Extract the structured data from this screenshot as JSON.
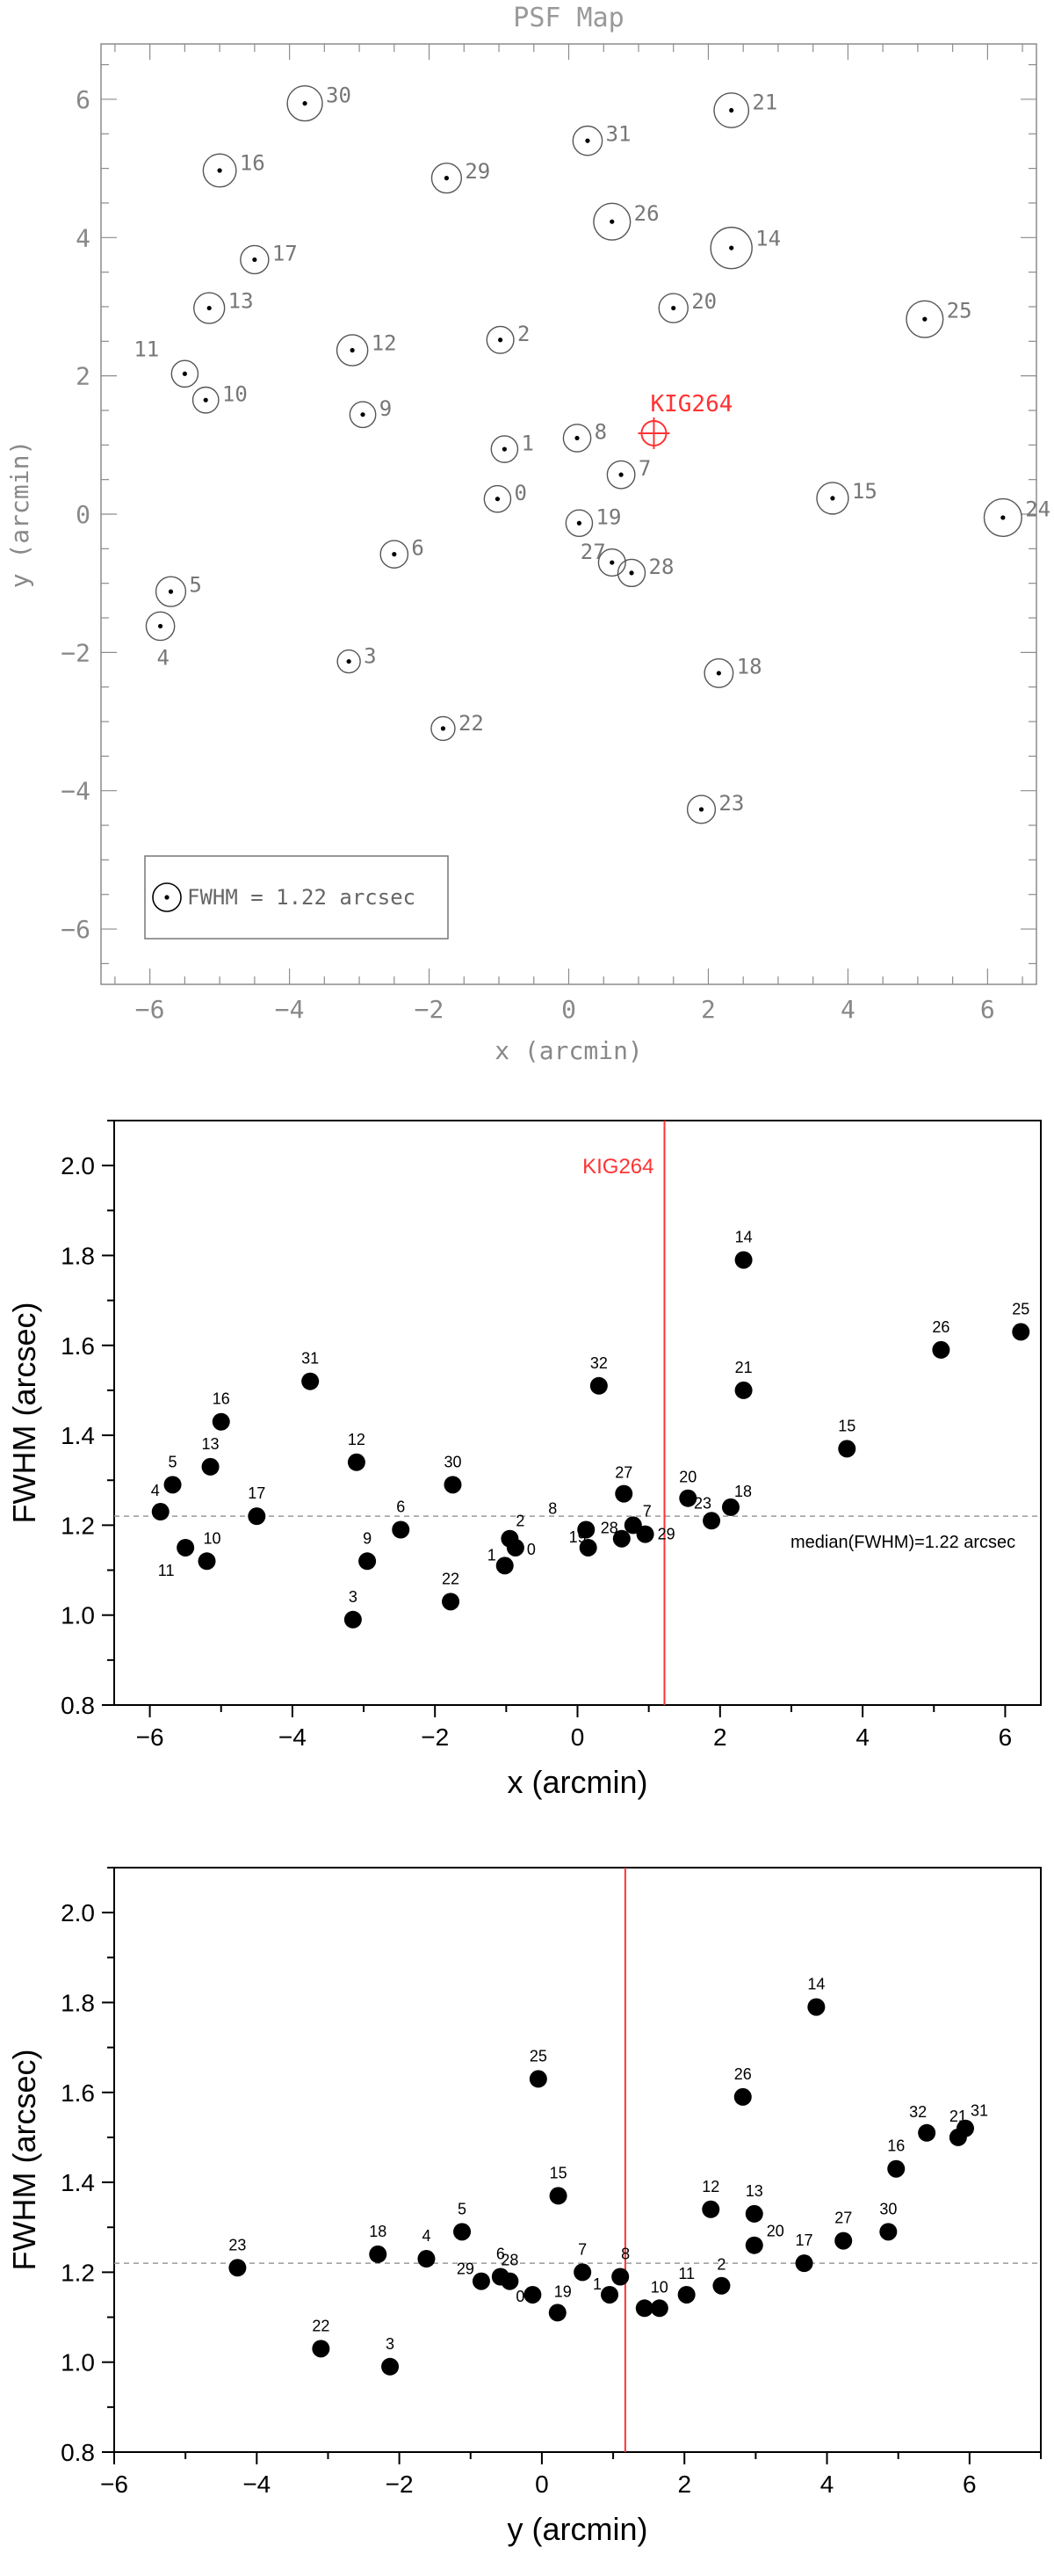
{
  "chart_data": [
    {
      "type": "scatter",
      "title": "PSF Map",
      "xlabel": "x (arcmin)",
      "ylabel": "y (arcmin)",
      "xlim": [
        -6.7,
        6.7
      ],
      "ylim": [
        -6.8,
        6.8
      ],
      "x_ticks": [
        -6,
        -4,
        -2,
        0,
        2,
        4,
        6
      ],
      "y_ticks": [
        -6,
        -4,
        -2,
        0,
        2,
        4,
        6
      ],
      "target": {
        "label": "KIG264",
        "x": 1.22,
        "y": 1.17,
        "color": "#ff3333"
      },
      "legend": {
        "text": "FWHM = 1.22 arcsec",
        "position": "bottom-left"
      },
      "points": [
        {
          "label": "0",
          "x": -1.02,
          "y": 0.22,
          "fwhm": 1.15
        },
        {
          "label": "1",
          "x": -0.92,
          "y": 0.94,
          "fwhm": 1.15
        },
        {
          "label": "2",
          "x": -0.98,
          "y": 2.52,
          "fwhm": 1.17
        },
        {
          "label": "3",
          "x": -3.15,
          "y": -2.13,
          "fwhm": 0.99
        },
        {
          "label": "4",
          "x": -5.85,
          "y": -1.62,
          "fwhm": 1.23
        },
        {
          "label": "5",
          "x": -5.7,
          "y": -1.12,
          "fwhm": 1.29
        },
        {
          "label": "6",
          "x": -2.5,
          "y": -0.58,
          "fwhm": 1.19
        },
        {
          "label": "7",
          "x": 0.75,
          "y": 0.57,
          "fwhm": 1.2
        },
        {
          "label": "8",
          "x": 0.12,
          "y": 1.1,
          "fwhm": 1.19
        },
        {
          "label": "9",
          "x": -2.95,
          "y": 1.44,
          "fwhm": 1.12
        },
        {
          "label": "10",
          "x": -5.2,
          "y": 1.65,
          "fwhm": 1.12
        },
        {
          "label": "11",
          "x": -5.5,
          "y": 2.03,
          "fwhm": 1.15
        },
        {
          "label": "12",
          "x": -3.1,
          "y": 2.37,
          "fwhm": 1.34
        },
        {
          "label": "13",
          "x": -5.15,
          "y": 2.98,
          "fwhm": 1.33
        },
        {
          "label": "14",
          "x": 2.33,
          "y": 3.85,
          "fwhm": 1.79
        },
        {
          "label": "15",
          "x": 3.78,
          "y": 0.23,
          "fwhm": 1.37
        },
        {
          "label": "16",
          "x": -5.0,
          "y": 4.97,
          "fwhm": 1.43
        },
        {
          "label": "17",
          "x": -4.5,
          "y": 3.68,
          "fwhm": 1.22
        },
        {
          "label": "18",
          "x": 2.15,
          "y": -2.3,
          "fwhm": 1.24
        },
        {
          "label": "19",
          "x": 0.15,
          "y": -0.13,
          "fwhm": 1.15
        },
        {
          "label": "20",
          "x": 1.5,
          "y": 2.98,
          "fwhm": 1.26
        },
        {
          "label": "21",
          "x": 2.33,
          "y": 5.84,
          "fwhm": 1.5
        },
        {
          "label": "22",
          "x": -1.8,
          "y": -3.1,
          "fwhm": 1.03
        },
        {
          "label": "23",
          "x": 1.9,
          "y": -4.27,
          "fwhm": 1.21
        },
        {
          "label": "24",
          "x": 6.22,
          "y": -0.05,
          "fwhm": 1.63
        },
        {
          "label": "25",
          "x": 5.1,
          "y": 2.82,
          "fwhm": 1.59
        },
        {
          "label": "26",
          "x": 0.62,
          "y": 4.23,
          "fwhm": 1.59
        },
        {
          "label": "27",
          "x": 0.62,
          "y": -0.7,
          "fwhm": 1.17
        },
        {
          "label": "28",
          "x": 0.9,
          "y": -0.85,
          "fwhm": 1.18
        },
        {
          "label": "29",
          "x": -1.75,
          "y": 4.86,
          "fwhm": 1.29
        },
        {
          "label": "30",
          "x": -3.78,
          "y": 5.94,
          "fwhm": 1.52
        },
        {
          "label": "31",
          "x": 0.27,
          "y": 5.4,
          "fwhm": 1.27
        }
      ]
    },
    {
      "type": "scatter",
      "title": "",
      "xlabel": "x (arcmin)",
      "ylabel": "FWHM (arcsec)",
      "xlim": [
        -6.5,
        6.5
      ],
      "ylim": [
        0.8,
        2.1
      ],
      "x_ticks": [
        -6,
        -4,
        -2,
        0,
        2,
        4,
        6
      ],
      "y_ticks": [
        0.8,
        1.0,
        1.2,
        1.4,
        1.6,
        1.8,
        2.0
      ],
      "target": {
        "label": "KIG264",
        "x": 1.22,
        "color": "#ff3333"
      },
      "median": {
        "value": 1.22,
        "label": "median(FWHM)=1.22 arcsec"
      },
      "points": [
        {
          "label": "0",
          "x": -0.87,
          "y": 1.15
        },
        {
          "label": "1",
          "x": -1.02,
          "y": 1.11
        },
        {
          "label": "2",
          "x": -0.95,
          "y": 1.17
        },
        {
          "label": "3",
          "x": -3.15,
          "y": 0.99
        },
        {
          "label": "4",
          "x": -5.85,
          "y": 1.23
        },
        {
          "label": "5",
          "x": -5.68,
          "y": 1.29
        },
        {
          "label": "6",
          "x": -2.48,
          "y": 1.19
        },
        {
          "label": "7",
          "x": 0.78,
          "y": 1.2
        },
        {
          "label": "8",
          "x": 0.12,
          "y": 1.19
        },
        {
          "label": "9",
          "x": -2.95,
          "y": 1.12
        },
        {
          "label": "10",
          "x": -5.2,
          "y": 1.12
        },
        {
          "label": "11",
          "x": -5.5,
          "y": 1.15
        },
        {
          "label": "12",
          "x": -3.1,
          "y": 1.34
        },
        {
          "label": "13",
          "x": -5.15,
          "y": 1.33
        },
        {
          "label": "14",
          "x": 2.33,
          "y": 1.79
        },
        {
          "label": "15",
          "x": 3.78,
          "y": 1.37
        },
        {
          "label": "16",
          "x": -5.0,
          "y": 1.43
        },
        {
          "label": "17",
          "x": -4.5,
          "y": 1.22
        },
        {
          "label": "18",
          "x": 2.15,
          "y": 1.24
        },
        {
          "label": "19",
          "x": 0.15,
          "y": 1.15
        },
        {
          "label": "20",
          "x": 1.55,
          "y": 1.26
        },
        {
          "label": "21",
          "x": 2.33,
          "y": 1.5
        },
        {
          "label": "22",
          "x": -1.78,
          "y": 1.03
        },
        {
          "label": "23",
          "x": 1.88,
          "y": 1.21
        },
        {
          "label": "25",
          "x": 6.22,
          "y": 1.63
        },
        {
          "label": "26",
          "x": 5.1,
          "y": 1.59
        },
        {
          "label": "27",
          "x": 0.65,
          "y": 1.27
        },
        {
          "label": "28",
          "x": 0.62,
          "y": 1.17
        },
        {
          "label": "29",
          "x": 0.95,
          "y": 1.18
        },
        {
          "label": "30",
          "x": -1.75,
          "y": 1.29
        },
        {
          "label": "31",
          "x": -3.75,
          "y": 1.52
        },
        {
          "label": "32",
          "x": 0.3,
          "y": 1.51
        }
      ]
    },
    {
      "type": "scatter",
      "title": "",
      "xlabel": "y (arcmin)",
      "ylabel": "FWHM (arcsec)",
      "xlim": [
        -6.0,
        7.0
      ],
      "ylim": [
        0.8,
        2.1
      ],
      "x_ticks": [
        -6,
        -4,
        -2,
        0,
        2,
        4,
        6
      ],
      "y_ticks": [
        0.8,
        1.0,
        1.2,
        1.4,
        1.6,
        1.8,
        2.0
      ],
      "target": {
        "x": 1.17,
        "color": "#ff3333"
      },
      "median": {
        "value": 1.22
      },
      "points": [
        {
          "label": "0",
          "x": -0.13,
          "y": 1.15
        },
        {
          "label": "1",
          "x": 0.95,
          "y": 1.15
        },
        {
          "label": "2",
          "x": 2.52,
          "y": 1.17
        },
        {
          "label": "3",
          "x": -2.13,
          "y": 0.99
        },
        {
          "label": "4",
          "x": -1.62,
          "y": 1.23
        },
        {
          "label": "5",
          "x": -1.12,
          "y": 1.29
        },
        {
          "label": "6",
          "x": -0.58,
          "y": 1.19
        },
        {
          "label": "7",
          "x": 0.57,
          "y": 1.2
        },
        {
          "label": "8",
          "x": 1.1,
          "y": 1.19
        },
        {
          "label": "9",
          "x": 1.44,
          "y": 1.12
        },
        {
          "label": "10",
          "x": 1.65,
          "y": 1.12
        },
        {
          "label": "11",
          "x": 2.03,
          "y": 1.15
        },
        {
          "label": "12",
          "x": 2.37,
          "y": 1.34
        },
        {
          "label": "13",
          "x": 2.98,
          "y": 1.33
        },
        {
          "label": "14",
          "x": 3.85,
          "y": 1.79
        },
        {
          "label": "15",
          "x": 0.23,
          "y": 1.37
        },
        {
          "label": "16",
          "x": 4.97,
          "y": 1.43
        },
        {
          "label": "17",
          "x": 3.68,
          "y": 1.22
        },
        {
          "label": "18",
          "x": -2.3,
          "y": 1.24
        },
        {
          "label": "19",
          "x": 0.22,
          "y": 1.11
        },
        {
          "label": "20",
          "x": 2.98,
          "y": 1.26
        },
        {
          "label": "21",
          "x": 5.84,
          "y": 1.5
        },
        {
          "label": "22",
          "x": -3.1,
          "y": 1.03
        },
        {
          "label": "23",
          "x": -4.27,
          "y": 1.21
        },
        {
          "label": "25",
          "x": -0.05,
          "y": 1.63
        },
        {
          "label": "26",
          "x": 2.82,
          "y": 1.59
        },
        {
          "label": "27",
          "x": 4.23,
          "y": 1.27
        },
        {
          "label": "28",
          "x": -0.45,
          "y": 1.18
        },
        {
          "label": "29",
          "x": -0.85,
          "y": 1.18
        },
        {
          "label": "30",
          "x": 4.86,
          "y": 1.29
        },
        {
          "label": "31",
          "x": 5.94,
          "y": 1.52
        },
        {
          "label": "32",
          "x": 5.4,
          "y": 1.51
        }
      ]
    }
  ]
}
